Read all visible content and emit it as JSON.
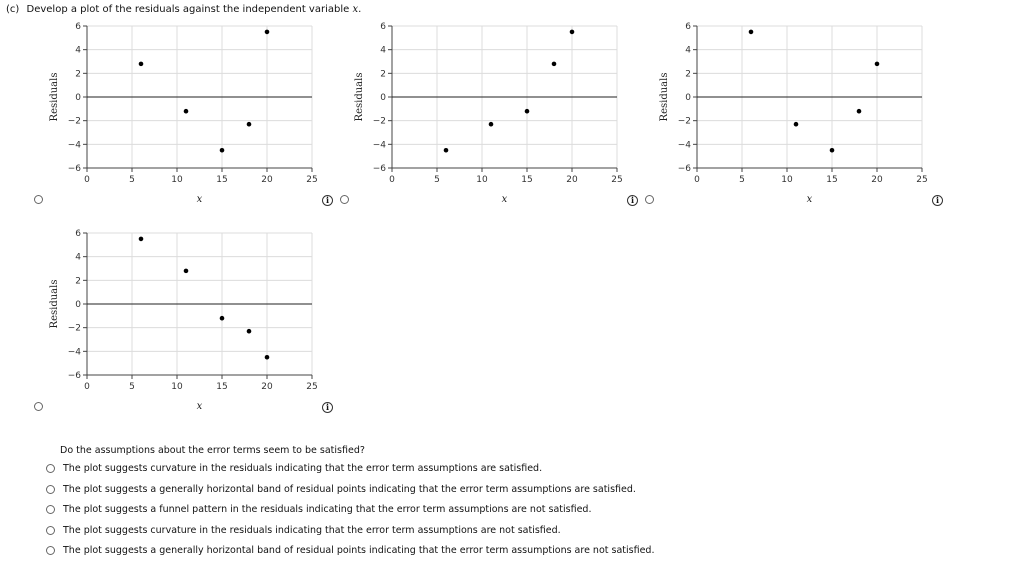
{
  "header": {
    "part": "(c)",
    "prompt": "Develop a plot of the residuals against the independent variable",
    "var": "x."
  },
  "info_glyph": "i",
  "chart_data": [
    {
      "type": "scatter",
      "xlabel": "x",
      "ylabel": "Residuals",
      "xlim": [
        0,
        25
      ],
      "ylim": [
        -6,
        6
      ],
      "xticks": [
        0,
        5,
        10,
        15,
        20,
        25
      ],
      "yticks": [
        -6,
        -4,
        -2,
        0,
        2,
        4,
        6
      ],
      "grid": true,
      "zero_line": true,
      "points": [
        {
          "x": 6,
          "y": 2.8
        },
        {
          "x": 11,
          "y": -1.2
        },
        {
          "x": 15,
          "y": -4.5
        },
        {
          "x": 18,
          "y": -2.3
        },
        {
          "x": 20,
          "y": 5.5
        }
      ]
    },
    {
      "type": "scatter",
      "xlabel": "x",
      "ylabel": "Residuals",
      "xlim": [
        0,
        25
      ],
      "ylim": [
        -6,
        6
      ],
      "xticks": [
        0,
        5,
        10,
        15,
        20,
        25
      ],
      "yticks": [
        -6,
        -4,
        -2,
        0,
        2,
        4,
        6
      ],
      "grid": true,
      "zero_line": true,
      "points": [
        {
          "x": 6,
          "y": -4.5
        },
        {
          "x": 11,
          "y": -2.3
        },
        {
          "x": 15,
          "y": -1.2
        },
        {
          "x": 18,
          "y": 2.8
        },
        {
          "x": 20,
          "y": 5.5
        }
      ]
    },
    {
      "type": "scatter",
      "xlabel": "x",
      "ylabel": "Residuals",
      "xlim": [
        0,
        25
      ],
      "ylim": [
        -6,
        6
      ],
      "xticks": [
        0,
        5,
        10,
        15,
        20,
        25
      ],
      "yticks": [
        -6,
        -4,
        -2,
        0,
        2,
        4,
        6
      ],
      "grid": true,
      "zero_line": true,
      "points": [
        {
          "x": 6,
          "y": 5.5
        },
        {
          "x": 11,
          "y": -2.3
        },
        {
          "x": 15,
          "y": -4.5
        },
        {
          "x": 18,
          "y": -1.2
        },
        {
          "x": 20,
          "y": 2.8
        }
      ]
    },
    {
      "type": "scatter",
      "xlabel": "x",
      "ylabel": "Residuals",
      "xlim": [
        0,
        25
      ],
      "ylim": [
        -6,
        6
      ],
      "xticks": [
        0,
        5,
        10,
        15,
        20,
        25
      ],
      "yticks": [
        -6,
        -4,
        -2,
        0,
        2,
        4,
        6
      ],
      "grid": true,
      "zero_line": true,
      "points": [
        {
          "x": 6,
          "y": 5.5
        },
        {
          "x": 11,
          "y": 2.8
        },
        {
          "x": 15,
          "y": -1.2
        },
        {
          "x": 18,
          "y": -2.3
        },
        {
          "x": 20,
          "y": -4.5
        }
      ]
    }
  ],
  "question": "Do the assumptions about the error terms seem to be satisfied?",
  "choices": [
    "The plot suggests curvature in the residuals indicating that the error term assumptions are satisfied.",
    "The plot suggests a generally horizontal band of residual points indicating that the error term assumptions are satisfied.",
    "The plot suggests a funnel pattern in the residuals indicating that the error term assumptions are not satisfied.",
    "The plot suggests curvature in the residuals indicating that the error term assumptions are not satisfied.",
    "The plot suggests a generally horizontal band of residual points indicating that the error term assumptions are not satisfied."
  ]
}
